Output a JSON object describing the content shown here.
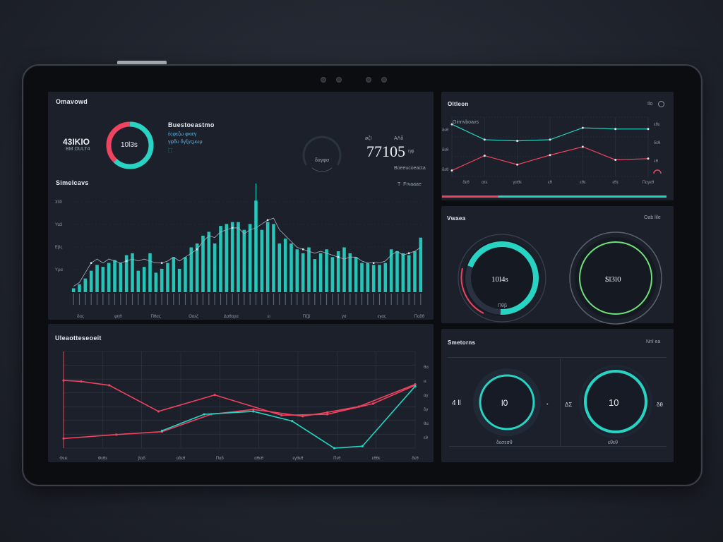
{
  "colors": {
    "teal": "#27d3c3",
    "pink": "#f0435f",
    "green": "#6fe07a",
    "panel": "#1b202b",
    "grid": "#313846"
  },
  "overview": {
    "title": "Omavowd",
    "kpi_left_value": "43ΙΚΙΟ",
    "kpi_left_sub": "ΒΜ OULT4",
    "donut_label": "10l3s",
    "donut_pct": 0.62,
    "center_title": "Buestoeastmo",
    "center_lines": [
      "έςφεζω φκιεγ",
      "γφδυ δγξγςμωμ",
      "⬚"
    ],
    "gauge_label": "δαγφσ",
    "stat_top_left": "øζΙ",
    "stat_top_right": "ΑΛδ",
    "stat_value": "77105",
    "stat_unit": "ηφ",
    "stat_sub": "Boeeucoeacta",
    "section_title": "Simelcavs",
    "section_right": "Τ  Frvaaae"
  },
  "bar_chart": {
    "y_ticks": [
      "330",
      "Υα3",
      "Εβς",
      "Υρα"
    ],
    "x_ticks": [
      "δας",
      "φηθ",
      "Πθας",
      "Οαεζ",
      "Δαθαρα",
      "ει",
      "Πζβ",
      "γσ",
      "εγας",
      "Παδθ"
    ],
    "ylim": [
      0,
      100
    ],
    "values": [
      4,
      8,
      14,
      22,
      28,
      26,
      30,
      33,
      30,
      38,
      40,
      22,
      26,
      40,
      20,
      24,
      30,
      36,
      24,
      36,
      46,
      50,
      58,
      62,
      50,
      68,
      70,
      72,
      72,
      64,
      70,
      94,
      64,
      72,
      70,
      50,
      55,
      50,
      44,
      40,
      46,
      34,
      40,
      44,
      36,
      42,
      46,
      40,
      36,
      30,
      30,
      28,
      28,
      30,
      44,
      42,
      40,
      38,
      42,
      56
    ],
    "line_values": [
      6,
      10,
      20,
      30,
      34,
      30,
      34,
      32,
      30,
      32,
      34,
      32,
      34,
      32,
      30,
      30,
      32,
      36,
      32,
      36,
      40,
      44,
      52,
      58,
      56,
      62,
      64,
      66,
      66,
      60,
      64,
      66,
      70,
      74,
      76,
      64,
      58,
      52,
      46,
      44,
      42,
      40,
      42,
      40,
      38,
      36,
      34,
      36,
      36,
      32,
      30,
      30,
      30,
      32,
      38,
      42,
      38,
      40,
      42,
      46
    ]
  },
  "line_chart_left": {
    "title": "Uleaotteseoeit",
    "x_ticks": [
      "Φειε",
      "Φεθε",
      "βαδ",
      "αδεθ",
      "Παδ",
      "αθεθ",
      "εγθεθ",
      "Πεθ",
      "εθθε",
      "δεθ"
    ],
    "y_ticks": [
      "θα",
      "ιε",
      "αγ",
      "δγ",
      "θα",
      "εθ"
    ],
    "ylim": [
      0,
      100
    ],
    "series": [
      {
        "color": "#f0435f",
        "x": [
          0,
          0.5,
          1.3,
          2.7,
          4.3,
          6.2,
          7.5,
          8.8,
          10
        ],
        "values": [
          70,
          69,
          65,
          38,
          55,
          34,
          35,
          46,
          65
        ]
      },
      {
        "color": "#f0435f",
        "x": [
          0,
          1.5,
          2.8,
          4.2,
          5.4,
          6.8,
          7.5,
          8.4,
          10
        ],
        "values": [
          10,
          14,
          17,
          35,
          40,
          33,
          37,
          43,
          66
        ]
      },
      {
        "color": "#27d3c3",
        "x": [
          2.8,
          4,
          5.4,
          6.5,
          7.7,
          8.5,
          10
        ],
        "values": [
          18,
          35,
          38,
          28,
          0,
          2,
          64
        ]
      }
    ]
  },
  "trend_panel": {
    "title": "Oltleon",
    "right": "Ilo",
    "legend": [
      "Oinnvboavs"
    ],
    "y_ticks": [
      "δεθ",
      "δεθ",
      "δεθ"
    ],
    "x_ticks": [
      "δεθ",
      "ατε",
      "γαθε",
      "εθ",
      "εθε",
      "εθε",
      "Παγεθ"
    ],
    "right_ticks": [
      "εθε",
      "δεθ",
      "εθ"
    ],
    "ylim": [
      0,
      100
    ],
    "series": [
      {
        "color": "#27d3c3",
        "x": [
          0,
          1,
          2,
          3,
          4,
          5,
          6
        ],
        "values": [
          88,
          62,
          60,
          62,
          82,
          80,
          80
        ]
      },
      {
        "color": "#f0435f",
        "x": [
          0,
          1,
          2,
          3,
          4,
          5,
          6
        ],
        "values": [
          10,
          35,
          20,
          36,
          50,
          28,
          30
        ]
      }
    ],
    "progress": [
      0.25,
      0.75
    ]
  },
  "gauges_panel": {
    "title": "Vwaea",
    "right": "Oab lile",
    "gauge1_value": "10l4s",
    "gauge1_sub": "Πθβ",
    "gauge1_pct": 0.7,
    "gauge2_value": "$l3l0",
    "gauge2_pct": 1.0
  },
  "small_gauges_panel": {
    "title": "Smetorns",
    "right": "Nnl ea",
    "left_label": "4 ll",
    "left_right": "•",
    "gauge1_value": "l0",
    "gauge1_sub": "δεσεσθ",
    "middle_label": "ΔΣ",
    "gauge2_value": "10",
    "gauge2_sub": "εθεθ",
    "right_label": "δθ"
  }
}
